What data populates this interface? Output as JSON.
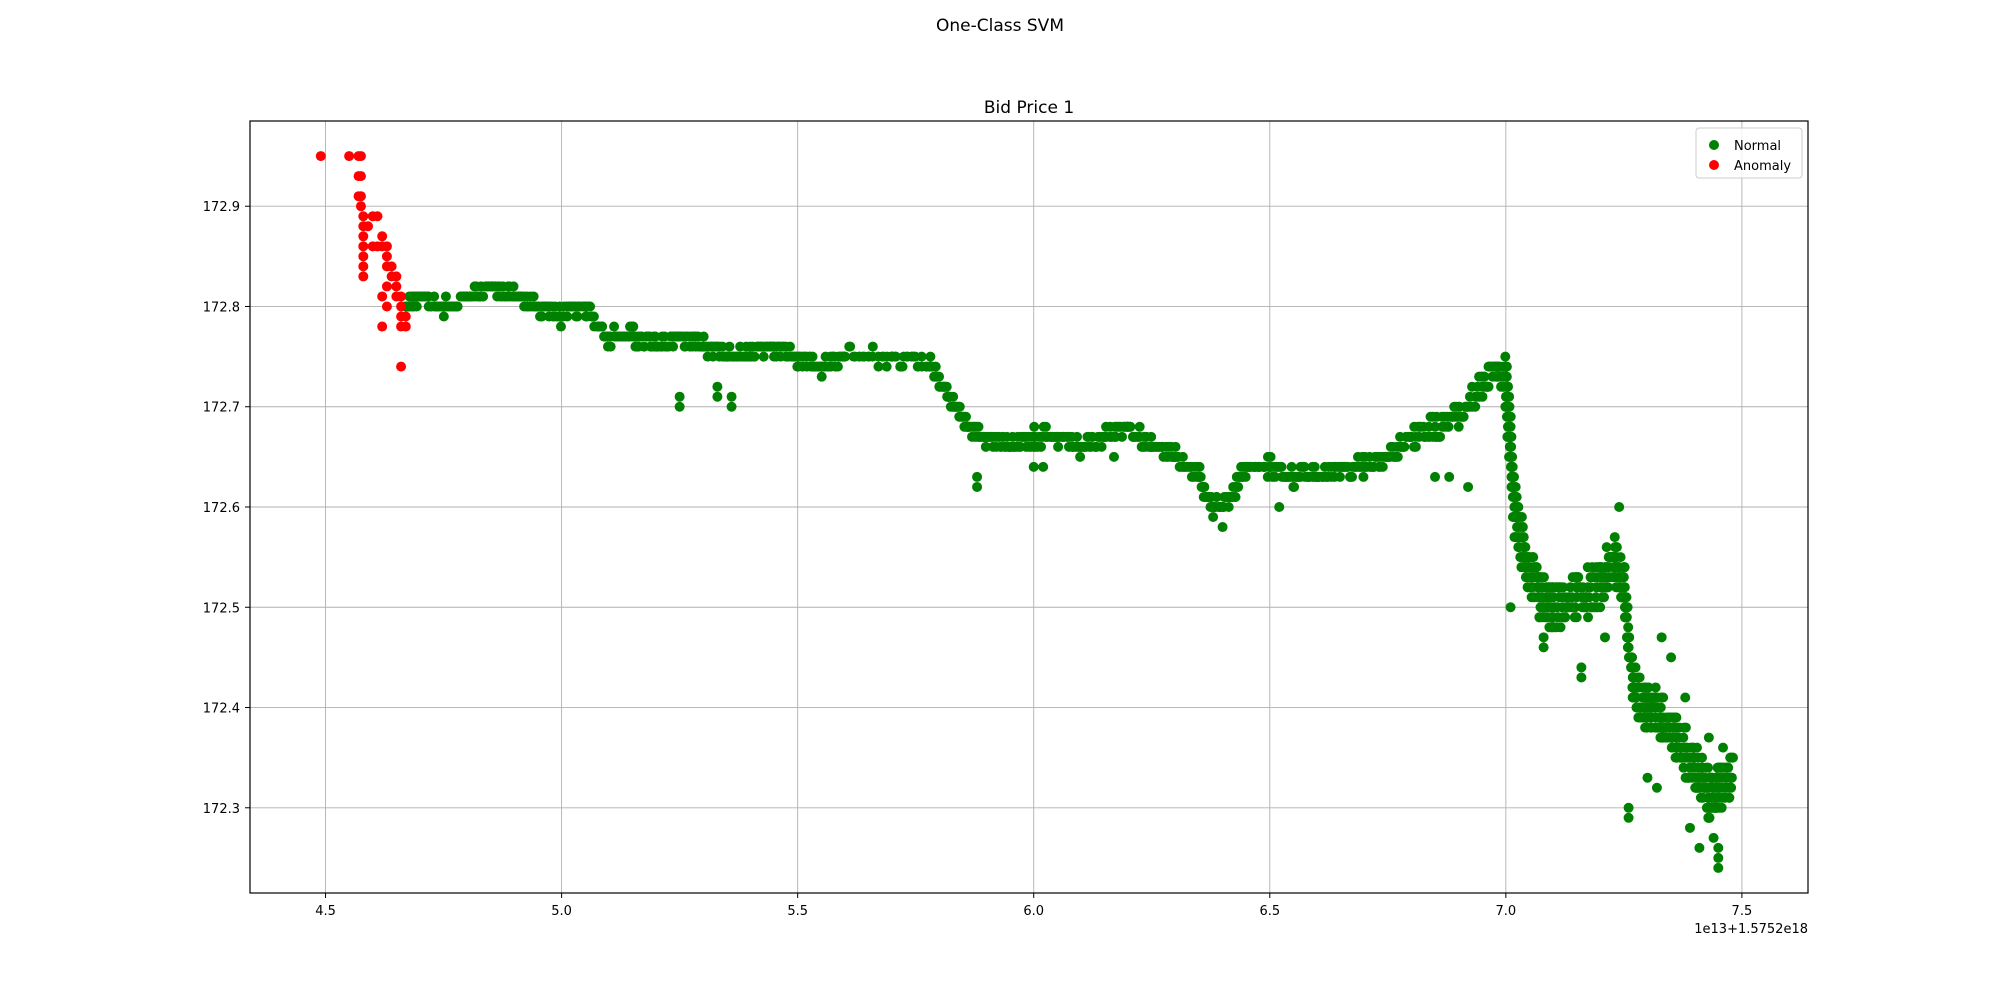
{
  "figure": {
    "suptitle": "One-Class SVM"
  },
  "chart_data": {
    "type": "scatter",
    "title": "Bid Price 1",
    "xlabel": "",
    "ylabel": "",
    "x_offset_label": "1e13+1.5752e18",
    "xlim": [
      4.34,
      7.64
    ],
    "ylim": [
      172.215,
      172.985
    ],
    "xticks": [
      4.5,
      5.0,
      5.5,
      6.0,
      6.5,
      7.0,
      7.5
    ],
    "xtick_labels": [
      "4.5",
      "5.0",
      "5.5",
      "6.0",
      "6.5",
      "7.0",
      "7.5"
    ],
    "yticks": [
      172.3,
      172.4,
      172.5,
      172.6,
      172.7,
      172.8,
      172.9
    ],
    "ytick_labels": [
      "172.3",
      "172.4",
      "172.5",
      "172.6",
      "172.7",
      "172.8",
      "172.9"
    ],
    "grid": true,
    "legend": {
      "position": "top-right"
    },
    "colors": {
      "Normal": "#008000",
      "Anomaly": "#ff0000"
    },
    "series": [
      {
        "name": "Anomaly",
        "color": "#ff0000",
        "points": [
          [
            4.49,
            172.95
          ],
          [
            4.55,
            172.95
          ],
          [
            4.57,
            172.95
          ],
          [
            4.575,
            172.95
          ],
          [
            4.57,
            172.93
          ],
          [
            4.575,
            172.93
          ],
          [
            4.57,
            172.91
          ],
          [
            4.575,
            172.91
          ],
          [
            4.575,
            172.9
          ],
          [
            4.58,
            172.89
          ],
          [
            4.6,
            172.89
          ],
          [
            4.61,
            172.89
          ],
          [
            4.58,
            172.88
          ],
          [
            4.59,
            172.88
          ],
          [
            4.58,
            172.87
          ],
          [
            4.62,
            172.87
          ],
          [
            4.58,
            172.86
          ],
          [
            4.6,
            172.86
          ],
          [
            4.61,
            172.86
          ],
          [
            4.62,
            172.86
          ],
          [
            4.63,
            172.86
          ],
          [
            4.58,
            172.85
          ],
          [
            4.63,
            172.85
          ],
          [
            4.58,
            172.84
          ],
          [
            4.63,
            172.84
          ],
          [
            4.64,
            172.84
          ],
          [
            4.58,
            172.83
          ],
          [
            4.64,
            172.83
          ],
          [
            4.65,
            172.83
          ],
          [
            4.63,
            172.82
          ],
          [
            4.65,
            172.82
          ],
          [
            4.62,
            172.81
          ],
          [
            4.65,
            172.81
          ],
          [
            4.66,
            172.81
          ],
          [
            4.63,
            172.8
          ],
          [
            4.66,
            172.8
          ],
          [
            4.66,
            172.79
          ],
          [
            4.67,
            172.79
          ],
          [
            4.62,
            172.78
          ],
          [
            4.66,
            172.78
          ],
          [
            4.67,
            172.78
          ],
          [
            4.66,
            172.74
          ]
        ]
      },
      {
        "name": "Normal",
        "color": "#008000",
        "segments": [
          [
            4.67,
            172.8
          ],
          [
            4.7,
            172.81
          ],
          [
            4.75,
            172.8
          ],
          [
            4.8,
            172.81
          ],
          [
            4.85,
            172.82
          ],
          [
            4.9,
            172.81
          ],
          [
            4.95,
            172.8
          ],
          [
            5.0,
            172.79
          ],
          [
            5.05,
            172.8
          ],
          [
            5.1,
            172.77
          ],
          [
            5.15,
            172.77
          ],
          [
            5.2,
            172.76
          ],
          [
            5.25,
            172.77
          ],
          [
            5.3,
            172.76
          ],
          [
            5.35,
            172.75
          ],
          [
            5.4,
            172.75
          ],
          [
            5.45,
            172.76
          ],
          [
            5.5,
            172.75
          ],
          [
            5.55,
            172.74
          ],
          [
            5.6,
            172.75
          ],
          [
            5.7,
            172.75
          ],
          [
            5.78,
            172.74
          ],
          [
            5.82,
            172.71
          ],
          [
            5.86,
            172.68
          ],
          [
            5.9,
            172.67
          ],
          [
            5.95,
            172.66
          ],
          [
            6.0,
            172.67
          ],
          [
            6.05,
            172.67
          ],
          [
            6.1,
            172.66
          ],
          [
            6.15,
            172.67
          ],
          [
            6.2,
            172.68
          ],
          [
            6.25,
            172.66
          ],
          [
            6.3,
            172.65
          ],
          [
            6.35,
            172.63
          ],
          [
            6.38,
            172.6
          ],
          [
            6.42,
            172.61
          ],
          [
            6.45,
            172.64
          ],
          [
            6.5,
            172.64
          ],
          [
            6.55,
            172.63
          ],
          [
            6.6,
            172.63
          ],
          [
            6.65,
            172.64
          ],
          [
            6.7,
            172.64
          ],
          [
            6.75,
            172.65
          ],
          [
            6.8,
            172.67
          ],
          [
            6.85,
            172.68
          ],
          [
            6.9,
            172.69
          ],
          [
            6.95,
            172.72
          ],
          [
            6.98,
            172.74
          ],
          [
            7.0,
            172.73
          ],
          [
            7.01,
            172.66
          ],
          [
            7.02,
            172.59
          ],
          [
            7.04,
            172.55
          ],
          [
            7.07,
            172.51
          ],
          [
            7.1,
            172.5
          ],
          [
            7.15,
            172.51
          ],
          [
            7.2,
            172.52
          ],
          [
            7.23,
            172.55
          ],
          [
            7.25,
            172.52
          ],
          [
            7.27,
            172.42
          ],
          [
            7.3,
            172.4
          ],
          [
            7.33,
            172.39
          ],
          [
            7.36,
            172.37
          ],
          [
            7.4,
            172.34
          ],
          [
            7.43,
            172.31
          ],
          [
            7.45,
            172.32
          ],
          [
            7.48,
            172.33
          ]
        ],
        "outliers": [
          [
            5.25,
            172.71
          ],
          [
            5.25,
            172.7
          ],
          [
            5.33,
            172.72
          ],
          [
            5.33,
            172.71
          ],
          [
            5.36,
            172.71
          ],
          [
            5.36,
            172.7
          ],
          [
            5.88,
            172.63
          ],
          [
            5.88,
            172.62
          ],
          [
            6.0,
            172.64
          ],
          [
            6.02,
            172.64
          ],
          [
            6.17,
            172.65
          ],
          [
            6.38,
            172.59
          ],
          [
            6.4,
            172.58
          ],
          [
            6.52,
            172.6
          ],
          [
            6.85,
            172.63
          ],
          [
            6.88,
            172.63
          ],
          [
            6.92,
            172.62
          ],
          [
            7.01,
            172.5
          ],
          [
            7.08,
            172.47
          ],
          [
            7.08,
            172.46
          ],
          [
            7.16,
            172.44
          ],
          [
            7.16,
            172.43
          ],
          [
            7.21,
            172.47
          ],
          [
            7.24,
            172.6
          ],
          [
            7.26,
            172.3
          ],
          [
            7.26,
            172.29
          ],
          [
            7.3,
            172.33
          ],
          [
            7.32,
            172.32
          ],
          [
            7.33,
            172.47
          ],
          [
            7.35,
            172.45
          ],
          [
            7.38,
            172.41
          ],
          [
            7.39,
            172.28
          ],
          [
            7.41,
            172.26
          ],
          [
            7.43,
            172.37
          ],
          [
            7.44,
            172.27
          ],
          [
            7.45,
            172.26
          ],
          [
            7.45,
            172.25
          ],
          [
            7.45,
            172.24
          ],
          [
            7.46,
            172.36
          ]
        ]
      }
    ]
  }
}
